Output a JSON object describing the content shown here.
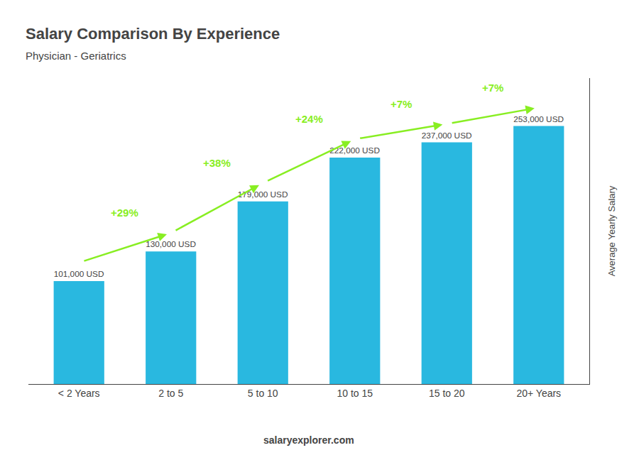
{
  "chart_data": {
    "type": "bar",
    "title": "Salary Comparison By Experience",
    "subtitle": "Physician - Geriatrics",
    "categories": [
      "< 2 Years",
      "2 to 5",
      "5 to 10",
      "10 to 15",
      "15 to 20",
      "20+ Years"
    ],
    "values": [
      101000,
      130000,
      179000,
      222000,
      237000,
      253000
    ],
    "value_labels": [
      "101,000 USD",
      "130,000 USD",
      "179,000 USD",
      "222,000 USD",
      "237,000 USD",
      "253,000 USD"
    ],
    "data_labels": true,
    "color": "#29b8e0",
    "ylim": [
      0,
      300000
    ],
    "ylabel": "Average Yearly Salary",
    "tick_labels": "x",
    "grid": false,
    "annotations": [
      {
        "text": "+29%",
        "color": "#88ee22"
      },
      {
        "text": "+38%",
        "color": "#88ee22"
      },
      {
        "text": "+24%",
        "color": "#88ee22"
      },
      {
        "text": "+7%",
        "color": "#88ee22"
      },
      {
        "text": "+7%",
        "color": "#88ee22"
      }
    ],
    "footer": "salaryexplorer.com"
  }
}
